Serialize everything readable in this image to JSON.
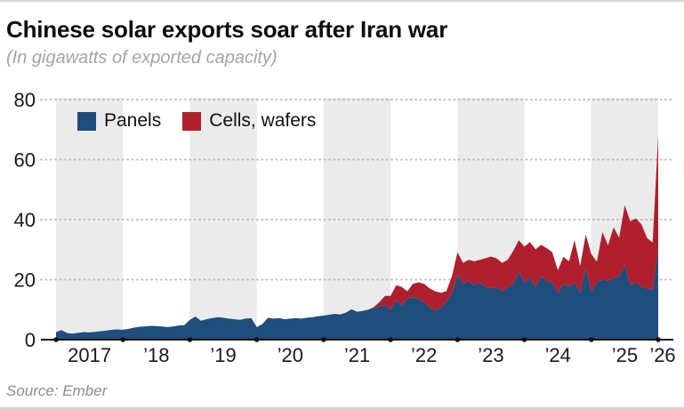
{
  "header": {
    "title": "Chinese solar exports soar after Iran war",
    "subtitle": "(In gigawatts of exported capacity)"
  },
  "legend": [
    {
      "label": "Panels",
      "color": "#1f4e7c"
    },
    {
      "label": "Cells, wafers",
      "color": "#b01f2e"
    }
  ],
  "source": "Source: Ember",
  "colors": {
    "panels": "#1f4e7c",
    "cells": "#b01f2e",
    "band": "#ebebeb",
    "grid": "#bdbdbd",
    "axis": "#111111",
    "tick_text": "#1a1a1a"
  },
  "chart_data": {
    "type": "area",
    "stacked": true,
    "x_interval": "monthly",
    "x_start": "2017-01",
    "x_end": "2026-01",
    "x_tick_labels": [
      "2017",
      "’18",
      "’19",
      "’20",
      "’21",
      "’22",
      "’23",
      "’24",
      "’25",
      "’26"
    ],
    "y_ticks": [
      0,
      20,
      40,
      60,
      80
    ],
    "y_tick_labels": [
      "0",
      "20",
      "40",
      "60",
      "80"
    ],
    "ylim": [
      0,
      80
    ],
    "grid": "dotted-horizontal",
    "background_bands_on_odd_years": true,
    "legend_position": "top-left-inside",
    "series": [
      {
        "name": "Panels",
        "color": "#1f4e7c",
        "values": [
          2.5,
          3.2,
          2.2,
          2.0,
          2.3,
          2.5,
          2.4,
          2.6,
          2.8,
          3.0,
          3.3,
          3.4,
          3.3,
          3.6,
          4.0,
          4.3,
          4.4,
          4.6,
          4.5,
          4.4,
          4.2,
          4.4,
          4.7,
          4.8,
          6.6,
          7.7,
          6.3,
          6.8,
          7.2,
          7.5,
          7.3,
          7.0,
          6.8,
          6.6,
          7.0,
          7.2,
          4.2,
          5.2,
          7.3,
          7.0,
          7.2,
          6.8,
          7.0,
          7.2,
          7.0,
          7.3,
          7.5,
          7.8,
          8.0,
          8.3,
          8.6,
          8.4,
          9.0,
          10.1,
          9.3,
          9.6,
          10.0,
          10.5,
          11.0,
          11.6,
          10.1,
          13.1,
          11.6,
          13.7,
          14.1,
          13.7,
          12.6,
          10.7,
          9.6,
          10.7,
          12.6,
          15.6,
          21.6,
          18.6,
          19.6,
          18.1,
          19.1,
          17.6,
          17.1,
          17.6,
          16.1,
          17.6,
          18.6,
          22.6,
          19.1,
          20.6,
          17.6,
          21.1,
          19.6,
          19.1,
          15.6,
          18.6,
          17.6,
          19.1,
          15.6,
          24.1,
          16.1,
          19.1,
          20.1,
          19.6,
          20.6,
          21.1,
          25.0,
          18.1,
          19.1,
          17.6,
          17.1,
          16.6,
          30.0
        ]
      },
      {
        "name": "Cells, wafers",
        "color": "#b01f2e",
        "values": [
          0,
          0,
          0,
          0,
          0,
          0,
          0,
          0,
          0,
          0,
          0,
          0,
          0,
          0,
          0,
          0,
          0,
          0,
          0,
          0,
          0,
          0,
          0,
          0,
          0,
          0,
          0,
          0,
          0,
          0,
          0,
          0,
          0,
          0,
          0,
          0,
          0,
          0,
          0,
          0,
          0,
          0,
          0,
          0,
          0,
          0,
          0,
          0,
          0,
          0,
          0,
          0,
          0,
          0,
          0,
          0,
          0,
          0.4,
          1.5,
          3.0,
          4.5,
          5.0,
          6.0,
          2.4,
          4.5,
          5.4,
          6.0,
          6.4,
          6.5,
          4.9,
          3.5,
          5.5,
          7.5,
          7.0,
          7.0,
          8.0,
          7.5,
          9.5,
          10.6,
          9.5,
          9.5,
          9.0,
          11.0,
          10.5,
          11.9,
          11.9,
          12.5,
          10.5,
          10.9,
          10.0,
          7.5,
          9.0,
          8.5,
          14.0,
          9.0,
          10.9,
          12.4,
          6.9,
          15.8,
          11.8,
          16.8,
          12.9,
          19.8,
          21.3,
          21.3,
          20.8,
          16.8,
          15.8,
          38.0
        ]
      }
    ]
  }
}
